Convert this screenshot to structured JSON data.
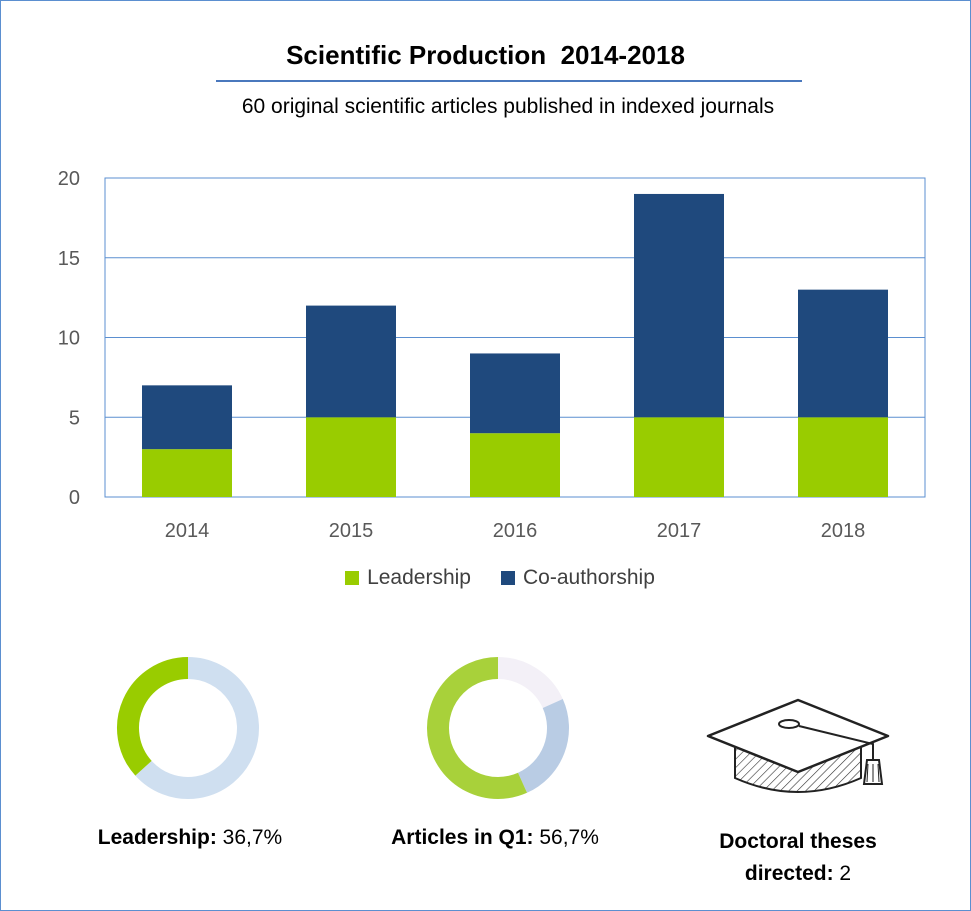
{
  "header": {
    "title": "Scientific Production  2014-2018",
    "subtitle": "60 original scientific articles published in indexed journals"
  },
  "colors": {
    "leadership": "#99cc00",
    "co_authorship": "#1f497d",
    "donut_light_blue": "#cfdff0",
    "donut_green": "#a8d13a",
    "donut_mid_blue": "#b9cce4",
    "donut_pale": "#f3f0f7",
    "frame": "#5b8fd0"
  },
  "chart_data": {
    "type": "bar",
    "stacked": true,
    "categories": [
      "2014",
      "2015",
      "2016",
      "2017",
      "2018"
    ],
    "series": [
      {
        "name": "Leadership",
        "values": [
          3,
          5,
          4,
          5,
          5
        ]
      },
      {
        "name": "Co-authorship",
        "values": [
          4,
          7,
          5,
          14,
          8
        ]
      }
    ],
    "ylim": [
      0,
      20
    ],
    "yticks": [
      0,
      5,
      10,
      15,
      20
    ],
    "grid": true,
    "legend_position": "bottom",
    "xlabel": "",
    "ylabel": ""
  },
  "stats": {
    "leadership": {
      "label": "Leadership:",
      "value": "36,7%",
      "fraction": 0.367
    },
    "q1": {
      "label": "Articles in Q1:",
      "value": "56,7%",
      "fraction": 0.567,
      "other_fractions": [
        0.25,
        0.183
      ]
    },
    "theses": {
      "label_line1": "Doctoral theses",
      "label_line2": "directed:",
      "value": "2",
      "icon": "graduation-cap-icon"
    }
  }
}
